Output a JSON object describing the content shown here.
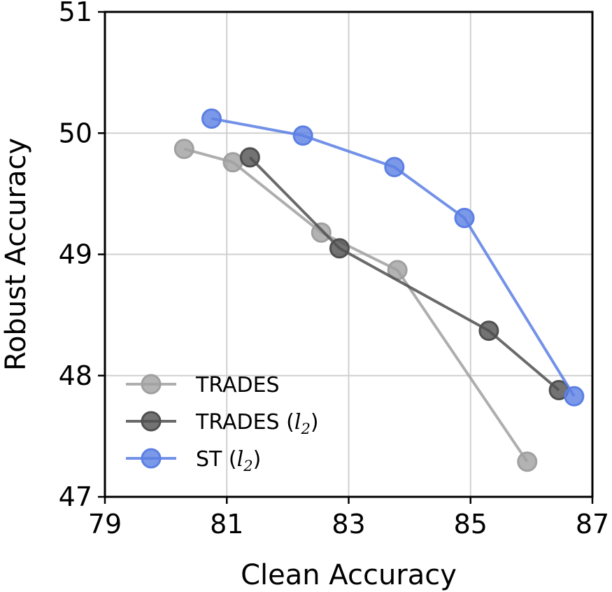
{
  "chart_data": {
    "type": "line",
    "title": "",
    "xlabel": "Clean Accuracy",
    "ylabel": "Robust Accuracy",
    "xlim": [
      79,
      87
    ],
    "ylim": [
      47,
      51
    ],
    "xticks": [
      "79",
      "81",
      "83",
      "85",
      "87"
    ],
    "yticks": [
      "47",
      "48",
      "49",
      "50",
      "51"
    ],
    "grid": true,
    "legend_position": "lower-left",
    "series": [
      {
        "name": "TRADES",
        "legend_main": "TRADES",
        "legend_sub": "",
        "color": "#a0a0a0",
        "points": [
          {
            "x": 80.3,
            "y": 49.87
          },
          {
            "x": 81.1,
            "y": 49.76
          },
          {
            "x": 82.55,
            "y": 49.18
          },
          {
            "x": 83.8,
            "y": 48.87
          },
          {
            "x": 85.93,
            "y": 47.29
          }
        ]
      },
      {
        "name": "TRADES (l2)",
        "legend_main": "TRADES (",
        "legend_sub": "l",
        "legend_subscript": "2",
        "legend_close": ")",
        "color": "#505050",
        "points": [
          {
            "x": 81.38,
            "y": 49.8
          },
          {
            "x": 82.85,
            "y": 49.05
          },
          {
            "x": 85.3,
            "y": 48.37
          },
          {
            "x": 86.45,
            "y": 47.88
          }
        ]
      },
      {
        "name": "ST (l2)",
        "legend_main": "ST (",
        "legend_sub": "l",
        "legend_subscript": "2",
        "legend_close": ")",
        "color": "#5b7fe3",
        "points": [
          {
            "x": 80.75,
            "y": 50.12
          },
          {
            "x": 82.25,
            "y": 49.98
          },
          {
            "x": 83.75,
            "y": 49.72
          },
          {
            "x": 84.9,
            "y": 49.3
          },
          {
            "x": 86.7,
            "y": 47.83
          }
        ]
      }
    ]
  }
}
